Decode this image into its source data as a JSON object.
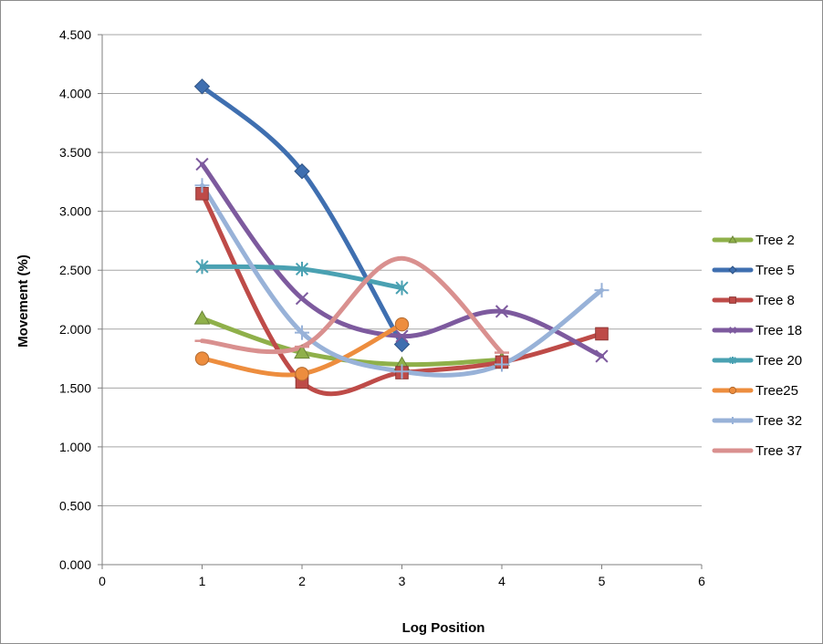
{
  "chart_data": {
    "type": "scatter",
    "title": "",
    "xlabel": "Log Position",
    "ylabel": "Movement (%)",
    "xlim": [
      0,
      6
    ],
    "ylim": [
      0,
      4.5
    ],
    "x_ticks": [
      "0",
      "1",
      "2",
      "3",
      "4",
      "5",
      "6"
    ],
    "y_ticks": [
      "0.000",
      "0.500",
      "1.000",
      "1.500",
      "2.000",
      "2.500",
      "3.000",
      "3.500",
      "4.000",
      "4.500"
    ],
    "grid": "horizontal",
    "legend_position": "right",
    "smooth_lines": true,
    "series": [
      {
        "name": "Tree 2",
        "color": "#8fb04a",
        "marker": "triangle",
        "points": [
          [
            1,
            2.09
          ],
          [
            2,
            1.8
          ],
          [
            3,
            1.7
          ],
          [
            4,
            1.74
          ]
        ]
      },
      {
        "name": "Tree 5",
        "color": "#3f6fb0",
        "marker": "diamond",
        "points": [
          [
            1,
            4.06
          ],
          [
            2,
            3.34
          ],
          [
            3,
            1.87
          ]
        ]
      },
      {
        "name": "Tree 8",
        "color": "#be4b48",
        "marker": "square",
        "points": [
          [
            1,
            3.15
          ],
          [
            2,
            1.55
          ],
          [
            3,
            1.63
          ],
          [
            4,
            1.72
          ],
          [
            5,
            1.96
          ]
        ]
      },
      {
        "name": "Tree 18",
        "color": "#7d5a9e",
        "marker": "x",
        "points": [
          [
            1,
            3.4
          ],
          [
            2,
            2.26
          ],
          [
            3,
            1.94
          ],
          [
            4,
            2.15
          ],
          [
            5,
            1.77
          ]
        ]
      },
      {
        "name": "Tree 20",
        "color": "#4aa1b2",
        "marker": "asterisk",
        "points": [
          [
            1,
            2.53
          ],
          [
            2,
            2.51
          ],
          [
            3,
            2.35
          ]
        ]
      },
      {
        "name": "Tree25",
        "color": "#ed8d3e",
        "marker": "circle",
        "points": [
          [
            1,
            1.75
          ],
          [
            2,
            1.62
          ],
          [
            3,
            2.04
          ]
        ]
      },
      {
        "name": "Tree 32",
        "color": "#98b2d8",
        "marker": "plus",
        "points": [
          [
            1,
            3.22
          ],
          [
            2,
            1.97
          ],
          [
            3,
            1.64
          ],
          [
            4,
            1.7
          ],
          [
            5,
            2.33
          ]
        ]
      },
      {
        "name": "Tree 37",
        "color": "#d9908f",
        "marker": "dash",
        "points": [
          [
            1,
            1.9
          ],
          [
            2,
            1.85
          ],
          [
            3,
            2.6
          ],
          [
            4,
            1.8
          ]
        ]
      }
    ]
  }
}
